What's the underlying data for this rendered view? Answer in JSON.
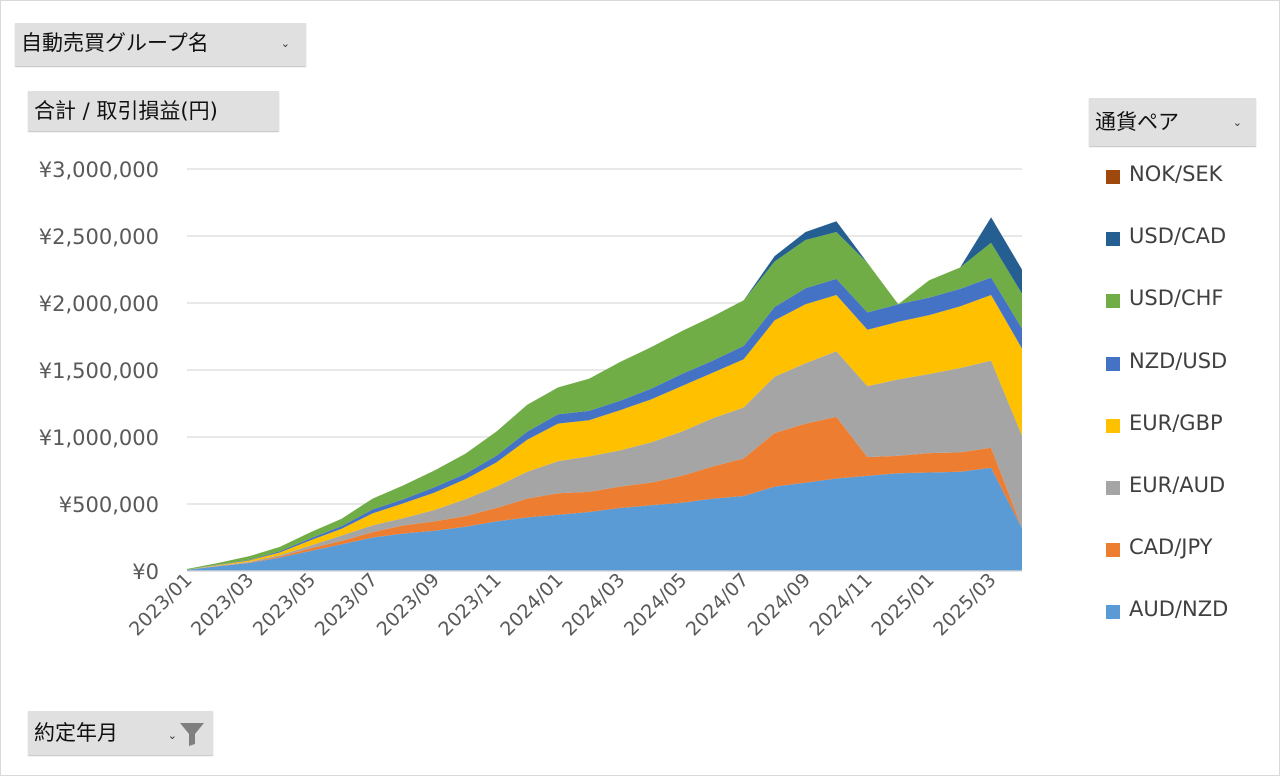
{
  "pivot": {
    "group_field": "自動売買グループ名",
    "value_field": "合計 / 取引損益(円)",
    "series_field": "通貨ペア",
    "date_field": "約定年月",
    "dropdown_glyph": "⌄",
    "filter_icon": "funnel-icon"
  },
  "chart_data": {
    "type": "area",
    "stacked": true,
    "grid": true,
    "legend_position": "right",
    "ylim": [
      0,
      3000000
    ],
    "y_ticks": [
      0,
      500000,
      1000000,
      1500000,
      2000000,
      2500000,
      3000000
    ],
    "y_tick_labels": [
      "¥0",
      "¥500,000",
      "¥1,000,000",
      "¥1,500,000",
      "¥2,000,000",
      "¥2,500,000",
      "¥3,000,000"
    ],
    "x": [
      "2023/01",
      "2023/02",
      "2023/03",
      "2023/04",
      "2023/05",
      "2023/06",
      "2023/07",
      "2023/08",
      "2023/09",
      "2023/10",
      "2023/11",
      "2023/12",
      "2024/01",
      "2024/02",
      "2024/03",
      "2024/04",
      "2024/05",
      "2024/06",
      "2024/07",
      "2024/08",
      "2024/09",
      "2024/10",
      "2024/11",
      "2024/12",
      "2025/01",
      "2025/02",
      "2025/03",
      "2025/04"
    ],
    "x_tick_labels": [
      "2023/01",
      "2023/03",
      "2023/05",
      "2023/07",
      "2023/09",
      "2023/11",
      "2024/01",
      "2024/03",
      "2024/05",
      "2024/07",
      "2024/09",
      "2024/11",
      "2025/01",
      "2025/03"
    ],
    "series": [
      {
        "name": "AUD/NZD",
        "color": "#5b9bd5",
        "values": [
          10000,
          35000,
          60000,
          100000,
          150000,
          200000,
          250000,
          280000,
          300000,
          330000,
          370000,
          400000,
          420000,
          440000,
          470000,
          490000,
          510000,
          540000,
          560000,
          630000,
          660000,
          690000,
          710000,
          730000,
          735000,
          740000,
          770000,
          320000
        ]
      },
      {
        "name": "CAD/JPY",
        "color": "#ed7d31",
        "values": [
          0,
          2000,
          3000,
          8000,
          20000,
          25000,
          40000,
          60000,
          70000,
          80000,
          100000,
          140000,
          160000,
          150000,
          160000,
          170000,
          200000,
          240000,
          280000,
          400000,
          440000,
          460000,
          140000,
          130000,
          145000,
          145000,
          150000,
          0
        ]
      },
      {
        "name": "EUR/AUD",
        "color": "#a5a5a5",
        "values": [
          0,
          3000,
          5000,
          10000,
          20000,
          40000,
          50000,
          55000,
          85000,
          125000,
          160000,
          200000,
          240000,
          265000,
          270000,
          300000,
          330000,
          360000,
          380000,
          420000,
          450000,
          490000,
          530000,
          570000,
          590000,
          630000,
          650000,
          690000
        ]
      },
      {
        "name": "EUR/GBP",
        "color": "#ffc000",
        "values": [
          0,
          5000,
          10000,
          20000,
          40000,
          50000,
          90000,
          110000,
          130000,
          150000,
          180000,
          240000,
          280000,
          270000,
          300000,
          320000,
          340000,
          340000,
          360000,
          420000,
          440000,
          420000,
          420000,
          430000,
          440000,
          460000,
          490000,
          650000
        ]
      },
      {
        "name": "NZD/USD",
        "color": "#4472c4",
        "values": [
          0,
          3000,
          5000,
          10000,
          15000,
          20000,
          30000,
          30000,
          40000,
          40000,
          50000,
          60000,
          70000,
          70000,
          70000,
          80000,
          90000,
          90000,
          100000,
          100000,
          120000,
          120000,
          130000,
          130000,
          130000,
          130000,
          130000,
          150000
        ]
      },
      {
        "name": "USD/CHF",
        "color": "#70ad47",
        "values": [
          5000,
          12000,
          27000,
          32000,
          45000,
          55000,
          80000,
          105000,
          125000,
          150000,
          180000,
          200000,
          200000,
          240000,
          290000,
          310000,
          320000,
          330000,
          340000,
          340000,
          360000,
          350000,
          370000,
          0,
          130000,
          160000,
          260000,
          260000
        ]
      },
      {
        "name": "USD/CAD",
        "color": "#255e91",
        "values": [
          0,
          0,
          0,
          0,
          0,
          0,
          0,
          0,
          0,
          0,
          0,
          0,
          0,
          0,
          0,
          0,
          0,
          0,
          0,
          40000,
          60000,
          80000,
          0,
          0,
          0,
          0,
          190000,
          180000
        ]
      },
      {
        "name": "NOK/SEK",
        "color": "#9e480e",
        "values": [
          0,
          0,
          0,
          0,
          0,
          0,
          0,
          0,
          0,
          0,
          0,
          0,
          0,
          0,
          0,
          0,
          0,
          0,
          0,
          0,
          0,
          0,
          0,
          0,
          0,
          0,
          0,
          0
        ]
      }
    ]
  }
}
